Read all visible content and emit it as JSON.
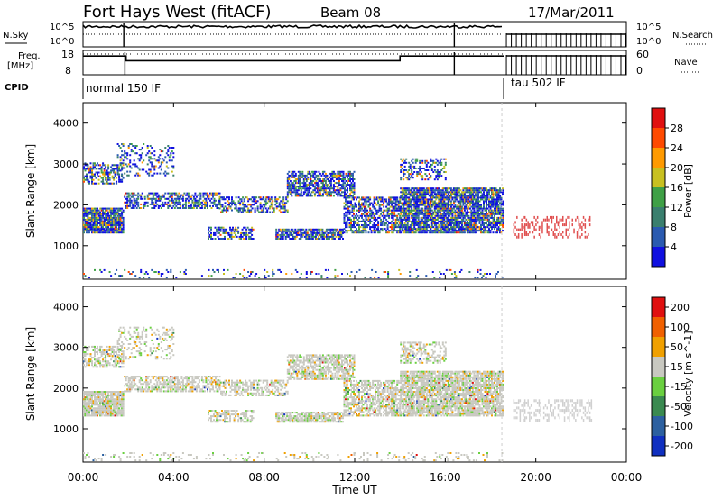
{
  "header": {
    "title": "Fort Hays West (fitACF)",
    "beam": "Beam 08",
    "date": "17/Mar/2011"
  },
  "strips": {
    "nsky_label": "N.Sky",
    "nsky_ticks": [
      "10^5",
      "10^0"
    ],
    "nsearch_label": "N.Search",
    "freq_label_1": "Freq.",
    "freq_label_2": "[MHz]",
    "freq_ticks": [
      "18",
      "8"
    ],
    "nave_ticks": [
      "60",
      "0"
    ],
    "nave_label": "Nave",
    "cpid_label": "CPID",
    "cpid_modes": [
      {
        "name": "normal 150 IF",
        "start": 0,
        "end": 18.6
      },
      {
        "name": "tau 502 IF",
        "start": 18.6,
        "end": 24
      }
    ]
  },
  "chart_data": [
    {
      "type": "heatmap",
      "id": "power",
      "ylabel": "Slant Range [km]",
      "ylim": [
        180,
        4500
      ],
      "y_ticks": [
        1000,
        2000,
        3000,
        4000
      ],
      "xlim": [
        0,
        24
      ],
      "colorbar": {
        "label": "Power [dB]",
        "ticks": [
          "4",
          "8",
          "12",
          "16",
          "20",
          "24",
          "28"
        ],
        "colors": [
          "#1010e0",
          "#2a5ab0",
          "#3a7f6e",
          "#3fa046",
          "#c8c020",
          "#ff9a00",
          "#ff4a00",
          "#e01010"
        ]
      }
    },
    {
      "type": "heatmap",
      "id": "velocity",
      "ylabel": "Velocity [m s",
      "yaxis_label": "Slant Range [km]",
      "ylim": [
        180,
        4500
      ],
      "y_ticks": [
        1000,
        2000,
        3000,
        4000
      ],
      "xlim": [
        0,
        24
      ],
      "colorbar": {
        "label": "Velocity [m s^-1]",
        "ticks": [
          "200",
          "100",
          "50",
          "15",
          "-15",
          "-50",
          "-100",
          "-200"
        ],
        "colors": [
          "#1030c0",
          "#2c60a0",
          "#3a8a50",
          "#6ad040",
          "#c8c8c0",
          "#f0a000",
          "#f06000",
          "#e01010"
        ]
      }
    }
  ],
  "xaxis": {
    "label": "Time UT",
    "ticks": [
      "00:00",
      "04:00",
      "08:00",
      "12:00",
      "16:00",
      "20:00",
      "00:00"
    ],
    "tick_hours": [
      0,
      4,
      8,
      12,
      16,
      20,
      24
    ]
  }
}
